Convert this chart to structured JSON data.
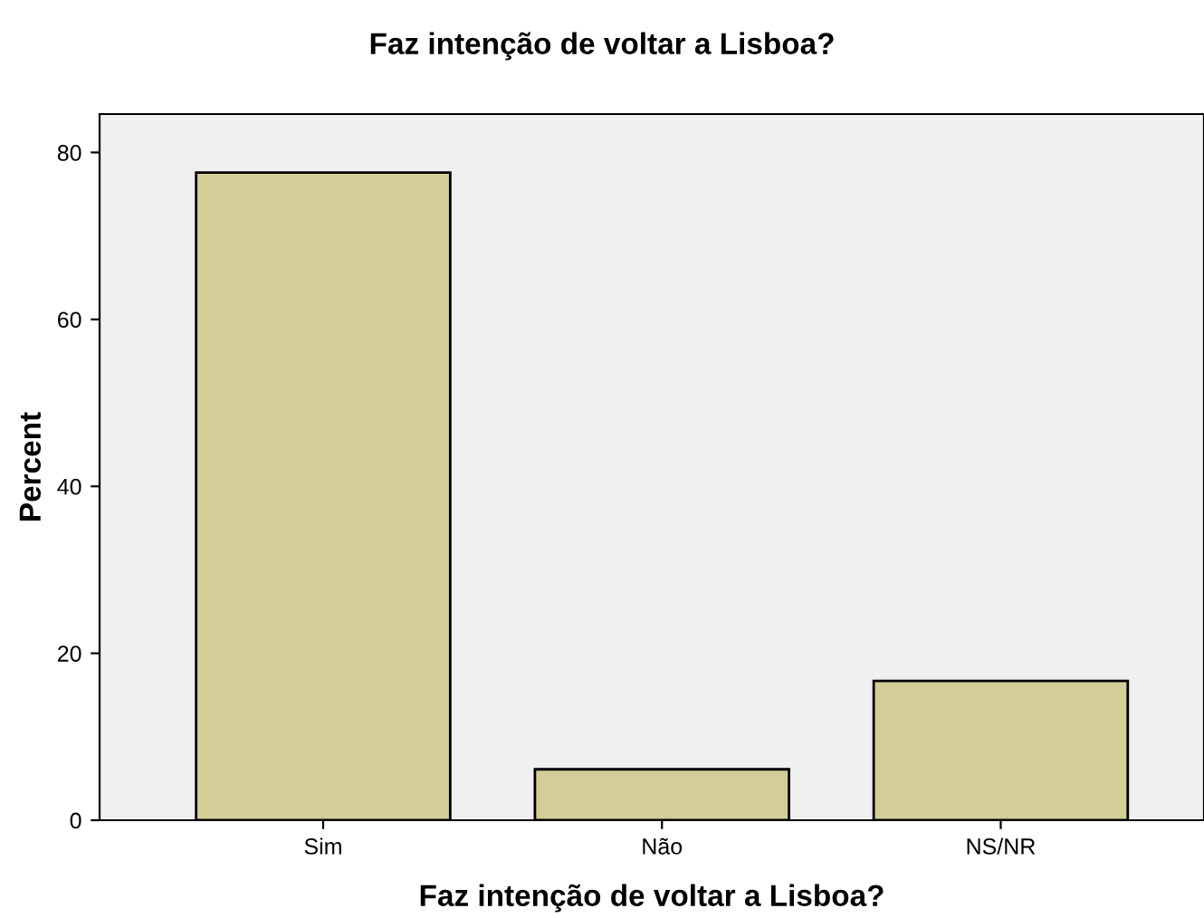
{
  "chart_data": {
    "type": "bar",
    "title": "Faz intenção de voltar a Lisboa?",
    "xlabel": "Faz intenção de voltar a Lisboa?",
    "ylabel": "Percent",
    "categories": [
      "Sim",
      "Não",
      "NS/NR"
    ],
    "values": [
      77.6,
      6.1,
      16.7
    ],
    "color": "#d3ce97",
    "ylim": [
      0,
      84.6
    ],
    "yticks": [
      0,
      20,
      40,
      60,
      80
    ],
    "grid": false
  }
}
